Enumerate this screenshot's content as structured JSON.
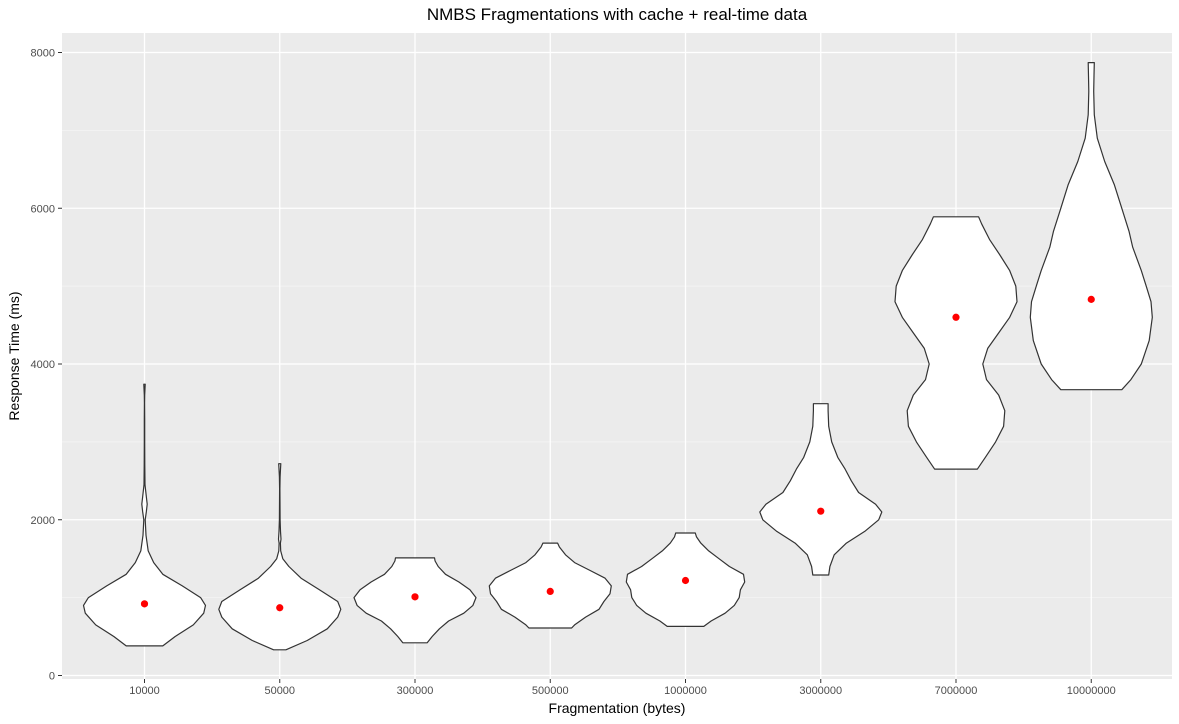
{
  "chart_data": {
    "type": "violin",
    "title": "NMBS Fragmentations with cache + real-time data",
    "xlabel": "Fragmentation (bytes)",
    "ylabel": "Response Time (ms)",
    "ylim": [
      0,
      8000
    ],
    "yticks": [
      0,
      2000,
      4000,
      6000,
      8000
    ],
    "categories": [
      "10000",
      "50000",
      "300000",
      "500000",
      "1000000",
      "3000000",
      "7000000",
      "10000000"
    ],
    "mean_marker_color": "#ff0000",
    "panel_background": "#ebebeb",
    "grid": true,
    "legend": "none",
    "series": [
      {
        "category": "10000",
        "mean": 920,
        "min": 380,
        "max": 3740,
        "profile": [
          [
            380,
            0.3
          ],
          [
            500,
            0.5
          ],
          [
            650,
            0.8
          ],
          [
            800,
            0.97
          ],
          [
            900,
            1.0
          ],
          [
            1000,
            0.92
          ],
          [
            1150,
            0.62
          ],
          [
            1300,
            0.3
          ],
          [
            1450,
            0.15
          ],
          [
            1600,
            0.06
          ],
          [
            1800,
            0.025
          ],
          [
            2000,
            0.012
          ],
          [
            2100,
            0.03
          ],
          [
            2200,
            0.045
          ],
          [
            2300,
            0.03
          ],
          [
            2450,
            0.008
          ],
          [
            2700,
            0.005
          ],
          [
            3000,
            0.004
          ],
          [
            3300,
            0.003
          ],
          [
            3500,
            0.002
          ],
          [
            3600,
            0.004
          ],
          [
            3740,
            0.012
          ]
        ]
      },
      {
        "category": "50000",
        "mean": 870,
        "min": 330,
        "max": 2720,
        "profile": [
          [
            330,
            0.1
          ],
          [
            450,
            0.45
          ],
          [
            600,
            0.78
          ],
          [
            750,
            0.95
          ],
          [
            850,
            1.0
          ],
          [
            950,
            0.95
          ],
          [
            1100,
            0.65
          ],
          [
            1250,
            0.35
          ],
          [
            1400,
            0.15
          ],
          [
            1500,
            0.05
          ],
          [
            1600,
            0.015
          ],
          [
            1700,
            0.01
          ],
          [
            1750,
            0.02
          ],
          [
            1850,
            0.012
          ],
          [
            2000,
            0.006
          ],
          [
            2200,
            0.004
          ],
          [
            2400,
            0.003
          ],
          [
            2550,
            0.005
          ],
          [
            2650,
            0.012
          ],
          [
            2720,
            0.018
          ]
        ]
      },
      {
        "category": "300000",
        "mean": 1010,
        "min": 420,
        "max": 1510,
        "profile": [
          [
            420,
            0.2
          ],
          [
            500,
            0.28
          ],
          [
            600,
            0.4
          ],
          [
            700,
            0.55
          ],
          [
            800,
            0.8
          ],
          [
            900,
            0.95
          ],
          [
            1000,
            1.0
          ],
          [
            1100,
            0.9
          ],
          [
            1200,
            0.72
          ],
          [
            1300,
            0.5
          ],
          [
            1400,
            0.38
          ],
          [
            1470,
            0.33
          ],
          [
            1510,
            0.32
          ]
        ]
      },
      {
        "category": "500000",
        "mean": 1080,
        "min": 610,
        "max": 1700,
        "profile": [
          [
            610,
            0.35
          ],
          [
            650,
            0.4
          ],
          [
            750,
            0.58
          ],
          [
            850,
            0.8
          ],
          [
            950,
            0.88
          ],
          [
            1050,
            0.98
          ],
          [
            1150,
            1.0
          ],
          [
            1250,
            0.9
          ],
          [
            1350,
            0.65
          ],
          [
            1450,
            0.4
          ],
          [
            1550,
            0.25
          ],
          [
            1650,
            0.15
          ],
          [
            1700,
            0.12
          ]
        ]
      },
      {
        "category": "1000000",
        "mean": 1220,
        "min": 630,
        "max": 1830,
        "profile": [
          [
            630,
            0.3
          ],
          [
            700,
            0.42
          ],
          [
            800,
            0.65
          ],
          [
            900,
            0.8
          ],
          [
            1000,
            0.88
          ],
          [
            1100,
            0.9
          ],
          [
            1200,
            0.97
          ],
          [
            1300,
            0.95
          ],
          [
            1400,
            0.72
          ],
          [
            1500,
            0.55
          ],
          [
            1600,
            0.38
          ],
          [
            1700,
            0.25
          ],
          [
            1780,
            0.18
          ],
          [
            1830,
            0.16
          ]
        ]
      },
      {
        "category": "3000000",
        "mean": 2110,
        "min": 1290,
        "max": 3490,
        "profile": [
          [
            1290,
            0.13
          ],
          [
            1400,
            0.15
          ],
          [
            1550,
            0.22
          ],
          [
            1700,
            0.42
          ],
          [
            1850,
            0.72
          ],
          [
            2000,
            0.95
          ],
          [
            2100,
            1.0
          ],
          [
            2200,
            0.9
          ],
          [
            2350,
            0.62
          ],
          [
            2500,
            0.5
          ],
          [
            2650,
            0.4
          ],
          [
            2800,
            0.28
          ],
          [
            3000,
            0.18
          ],
          [
            3200,
            0.13
          ],
          [
            3400,
            0.12
          ],
          [
            3490,
            0.12
          ]
        ]
      },
      {
        "category": "7000000",
        "mean": 4600,
        "min": 2650,
        "max": 5890,
        "profile": [
          [
            2650,
            0.35
          ],
          [
            2800,
            0.48
          ],
          [
            3000,
            0.65
          ],
          [
            3200,
            0.78
          ],
          [
            3400,
            0.8
          ],
          [
            3600,
            0.7
          ],
          [
            3800,
            0.5
          ],
          [
            4000,
            0.44
          ],
          [
            4200,
            0.52
          ],
          [
            4400,
            0.7
          ],
          [
            4600,
            0.88
          ],
          [
            4800,
            1.0
          ],
          [
            5000,
            0.98
          ],
          [
            5200,
            0.88
          ],
          [
            5400,
            0.72
          ],
          [
            5600,
            0.55
          ],
          [
            5800,
            0.42
          ],
          [
            5890,
            0.37
          ]
        ]
      },
      {
        "category": "10000000",
        "mean": 4830,
        "min": 3670,
        "max": 7870,
        "profile": [
          [
            3670,
            0.5
          ],
          [
            3800,
            0.65
          ],
          [
            4000,
            0.82
          ],
          [
            4300,
            0.95
          ],
          [
            4600,
            1.0
          ],
          [
            4800,
            0.98
          ],
          [
            5000,
            0.9
          ],
          [
            5200,
            0.82
          ],
          [
            5500,
            0.68
          ],
          [
            5700,
            0.62
          ],
          [
            6000,
            0.5
          ],
          [
            6300,
            0.38
          ],
          [
            6600,
            0.22
          ],
          [
            6900,
            0.1
          ],
          [
            7200,
            0.05
          ],
          [
            7500,
            0.04
          ],
          [
            7700,
            0.045
          ],
          [
            7870,
            0.05
          ]
        ]
      }
    ]
  }
}
